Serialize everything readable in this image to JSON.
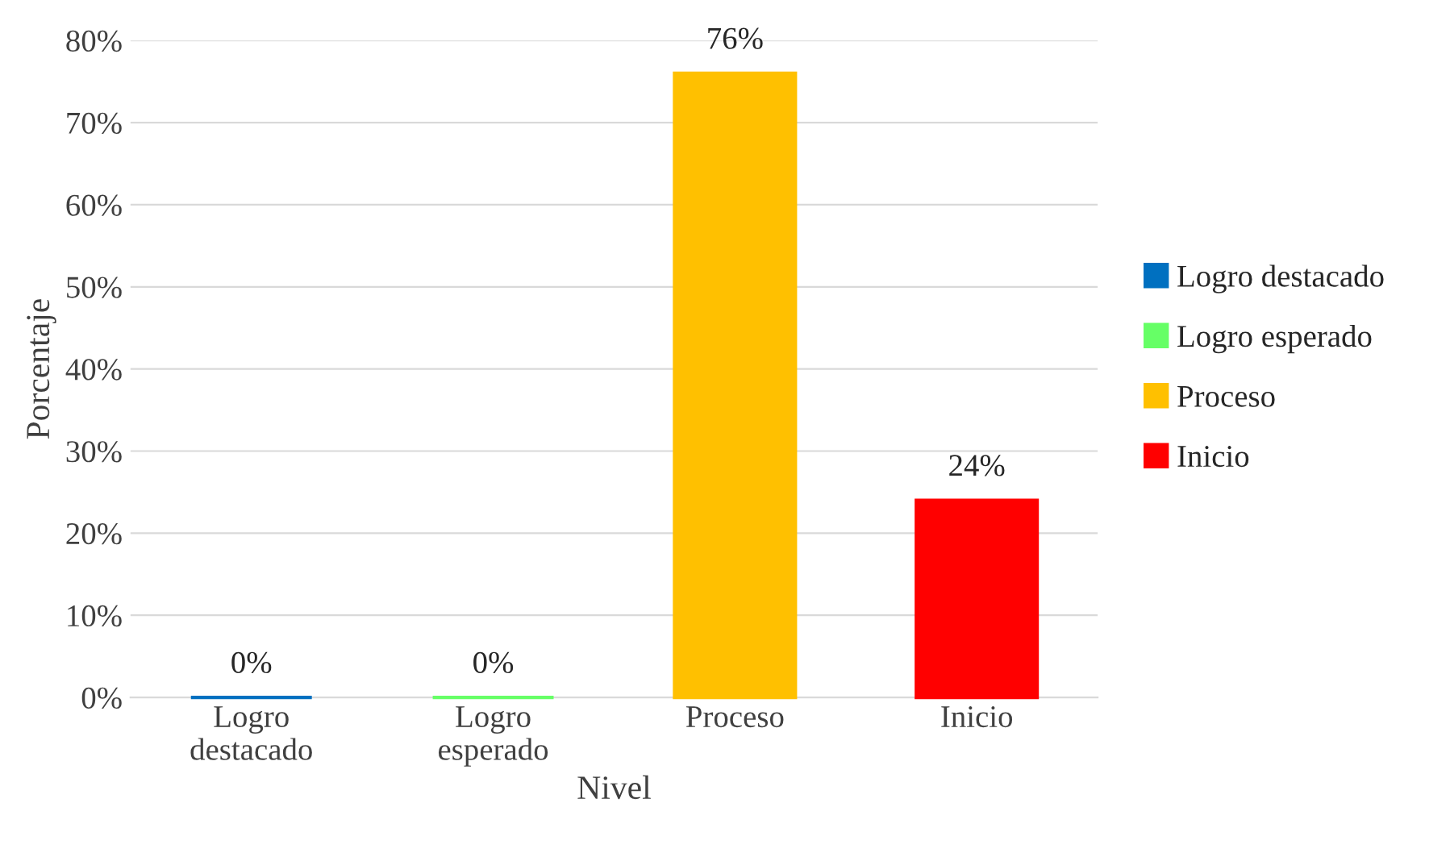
{
  "chart_data": {
    "type": "bar",
    "xlabel": "Nivel",
    "ylabel": "Porcentaje",
    "categories": [
      "Logro\ndestacado",
      "Logro\nesperado",
      "Proceso",
      "Inicio"
    ],
    "series": [
      {
        "name": "Logro destacado",
        "color": "#0070c0",
        "values": [
          0,
          null,
          null,
          null
        ],
        "value_labels": [
          "0%",
          null,
          null,
          null
        ]
      },
      {
        "name": "Logro esperado",
        "color": "#66ff66",
        "values": [
          null,
          0,
          null,
          null
        ],
        "value_labels": [
          null,
          "0%",
          null,
          null
        ]
      },
      {
        "name": "Proceso",
        "color": "#ffc000",
        "values": [
          null,
          null,
          76,
          null
        ],
        "value_labels": [
          null,
          null,
          "76%",
          null
        ]
      },
      {
        "name": "Inicio",
        "color": "#ff0000",
        "values": [
          null,
          null,
          null,
          24
        ],
        "value_labels": [
          null,
          null,
          null,
          "24%"
        ]
      }
    ],
    "ylim": [
      0,
      80
    ],
    "yticks": [
      {
        "value": 0,
        "label": "0%"
      },
      {
        "value": 10,
        "label": "10%"
      },
      {
        "value": 20,
        "label": "20%"
      },
      {
        "value": 30,
        "label": "30%"
      },
      {
        "value": 40,
        "label": "40%"
      },
      {
        "value": 50,
        "label": "50%"
      },
      {
        "value": 60,
        "label": "60%"
      },
      {
        "value": 70,
        "label": "70%"
      },
      {
        "value": 80,
        "label": "80%"
      }
    ],
    "grid": "y",
    "legend": "right"
  }
}
